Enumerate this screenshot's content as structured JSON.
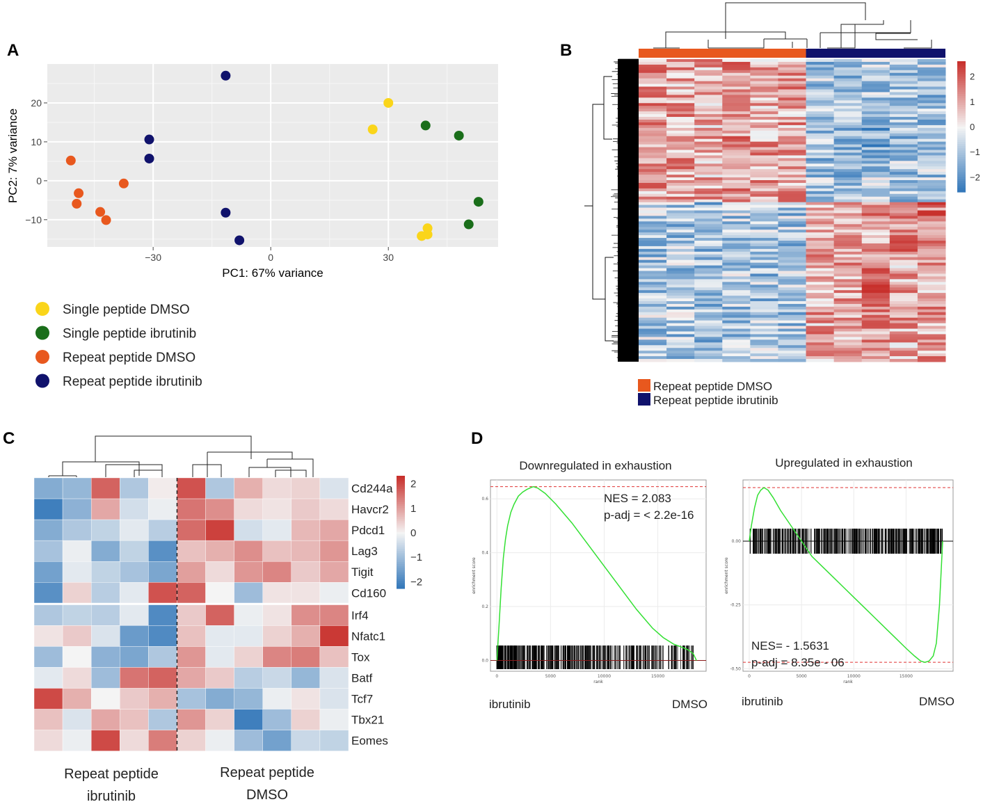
{
  "panel_labels": {
    "a": "A",
    "b": "B",
    "c": "C",
    "d": "D"
  },
  "colors": {
    "single_dmso": "#FAD51A",
    "single_ibrutinib": "#1A6E1A",
    "repeat_dmso": "#E8581E",
    "repeat_ibrutinib": "#10126C",
    "heat_low": "#2E74B8",
    "heat_mid": "#F4F4F4",
    "heat_high": "#C8302C",
    "gsea_line": "#33E033",
    "gsea_ref": "#E03030"
  },
  "chart_data": [
    {
      "id": "pca",
      "type": "scatter",
      "title": "",
      "xlabel": "PC1: 67% variance",
      "ylabel": "PC2: 7% variance",
      "xlim": [
        -57,
        58
      ],
      "ylim": [
        -17,
        30
      ],
      "xticks": [
        -30,
        0,
        30
      ],
      "yticks": [
        -10,
        0,
        10,
        20
      ],
      "grid": true,
      "legend_position": "bottom-left",
      "series": [
        {
          "name": "Single peptide DMSO",
          "color_key": "single_dmso",
          "points": [
            [
              26,
              13.2
            ],
            [
              30,
              20
            ],
            [
              38.5,
              -14.2
            ],
            [
              40,
              -12.2
            ],
            [
              40,
              -13.8
            ]
          ]
        },
        {
          "name": "Single peptide ibrutinib",
          "color_key": "single_ibrutinib",
          "points": [
            [
              39.5,
              14.2
            ],
            [
              48,
              11.6
            ],
            [
              53,
              -5.4
            ],
            [
              50.5,
              -11.2
            ]
          ]
        },
        {
          "name": "Repeat peptide DMSO",
          "color_key": "repeat_dmso",
          "points": [
            [
              -51,
              5.2
            ],
            [
              -49,
              -3.2
            ],
            [
              -49.5,
              -5.9
            ],
            [
              -43.5,
              -8
            ],
            [
              -42,
              -10.1
            ],
            [
              -37.5,
              -0.7
            ]
          ]
        },
        {
          "name": "Repeat peptide ibrutinib",
          "color_key": "repeat_ibrutinib",
          "points": [
            [
              -31,
              10.6
            ],
            [
              -31,
              5.7
            ],
            [
              -11.5,
              27
            ],
            [
              -11.5,
              -8.2
            ],
            [
              -8,
              -15.3
            ]
          ]
        }
      ]
    },
    {
      "id": "heatmap_b",
      "type": "heatmap",
      "title": "",
      "groups": [
        {
          "name": "Repeat peptide DMSO",
          "color_key": "repeat_dmso",
          "columns": 6
        },
        {
          "name": "Repeat peptide ibrutinib",
          "color_key": "repeat_ibrutinib",
          "columns": 5
        }
      ],
      "color_scale": {
        "min": -2.6,
        "max": 2.6,
        "ticks": [
          2,
          1,
          0,
          -1,
          -2
        ]
      }
    },
    {
      "id": "heatmap_c",
      "type": "heatmap",
      "rows": [
        "Cd244a",
        "Havcr2",
        "Pdcd1",
        "Lag3",
        "Tigit",
        "Cd160",
        "Irf4",
        "Nfatc1",
        "Tox",
        "Batf",
        "Tcf7",
        "Tbx21",
        "Eomes"
      ],
      "row_split_after": 6,
      "column_groups": [
        {
          "label_lines": [
            "Repeat peptide",
            "ibrutinib"
          ],
          "columns": 5
        },
        {
          "label_lines": [
            "Repeat peptide",
            "DMSO"
          ],
          "columns": 6
        }
      ],
      "values": [
        [
          -1.3,
          -1.1,
          1.7,
          -0.8,
          0.1,
          1.9,
          -0.8,
          0.8,
          0.3,
          0.4,
          -0.3
        ],
        [
          -2.1,
          -1.2,
          0.9,
          -0.4,
          -0.1,
          1.5,
          1.2,
          0.3,
          0.2,
          0.5,
          0.3
        ],
        [
          -1.3,
          -0.8,
          -0.6,
          -0.2,
          -0.7,
          1.6,
          2.1,
          -0.4,
          -0.2,
          0.7,
          0.9
        ],
        [
          -0.9,
          -0.1,
          -1.3,
          -0.6,
          -1.8,
          0.6,
          0.8,
          1.2,
          0.6,
          0.7,
          1.1
        ],
        [
          -1.5,
          -0.2,
          -0.6,
          -0.9,
          -1.4,
          1.0,
          0.3,
          1.1,
          1.3,
          0.5,
          0.9
        ],
        [
          -1.8,
          0.4,
          -0.7,
          -0.2,
          1.9,
          1.7,
          0.0,
          -1.0,
          0.2,
          0.2,
          -0.1
        ],
        [
          -0.8,
          -0.6,
          -0.7,
          -0.2,
          -1.9,
          0.5,
          1.7,
          -0.1,
          0.2,
          1.2,
          1.3
        ],
        [
          0.2,
          0.5,
          -0.3,
          -1.6,
          -1.9,
          0.6,
          -0.2,
          -0.2,
          0.4,
          0.8,
          2.2
        ],
        [
          -1.0,
          0.0,
          -1.2,
          -1.4,
          -0.8,
          1.1,
          -0.2,
          0.4,
          1.3,
          1.4,
          0.6
        ],
        [
          -0.2,
          0.3,
          -1.0,
          1.5,
          1.7,
          0.9,
          0.5,
          -0.7,
          -0.5,
          -1.1,
          -0.3
        ],
        [
          2.0,
          0.8,
          0.0,
          0.5,
          0.8,
          -0.9,
          -1.3,
          -1.1,
          -0.1,
          0.2,
          -0.3
        ],
        [
          0.6,
          -0.3,
          0.9,
          0.6,
          -0.8,
          1.1,
          0.4,
          -2.1,
          -1.0,
          0.4,
          -0.1
        ],
        [
          0.3,
          -0.1,
          2.0,
          0.3,
          1.4,
          0.4,
          -0.1,
          -1.0,
          -1.5,
          -0.5,
          -0.6
        ]
      ],
      "color_scale": {
        "min": -2.3,
        "max": 2.3,
        "ticks": [
          2,
          1,
          0,
          -1,
          -2
        ]
      }
    },
    {
      "id": "gsea_down",
      "type": "line",
      "title": "Downregulated in exhaustion",
      "xlabel": "rank",
      "ylabel": "enrichment score",
      "xlim": [
        -600,
        19500
      ],
      "ylim": [
        -0.04,
        0.67
      ],
      "xticks": [
        0,
        5000,
        10000,
        15000
      ],
      "yticks": [
        0.0,
        0.2,
        0.4,
        0.6
      ],
      "ytick_labels": [
        "0.0",
        "0.2",
        "0.4",
        "0.6"
      ],
      "peak_line": 0.645,
      "annotation": [
        "NES = 2.083",
        "p-adj = < 2.2e-16"
      ],
      "left_label": "ibrutinib",
      "right_label": "DMSO",
      "x": [
        0,
        200,
        400,
        600,
        800,
        1000,
        1300,
        1600,
        2000,
        2400,
        2800,
        3200,
        3400,
        3800,
        4500,
        5500,
        7000,
        8500,
        10000,
        11500,
        13000,
        14500,
        15500,
        16500,
        17200,
        17800,
        18300,
        18600
      ],
      "y": [
        0.0,
        0.13,
        0.27,
        0.38,
        0.45,
        0.5,
        0.55,
        0.58,
        0.61,
        0.625,
        0.635,
        0.642,
        0.645,
        0.64,
        0.62,
        0.58,
        0.51,
        0.43,
        0.35,
        0.27,
        0.19,
        0.12,
        0.085,
        0.06,
        0.05,
        0.04,
        0.025,
        0.0
      ]
    },
    {
      "id": "gsea_up",
      "type": "line",
      "title": "Upregulated  in exhaustion",
      "xlabel": "rank",
      "ylabel": "enrichment score",
      "xlim": [
        -600,
        19500
      ],
      "ylim": [
        -0.51,
        0.24
      ],
      "xticks": [
        0,
        5000,
        10000,
        15000
      ],
      "yticks": [
        0.0,
        -0.25,
        -0.5
      ],
      "ytick_labels": [
        "0.00",
        "-0.25",
        "-0.50"
      ],
      "peak_line": 0.21,
      "trough_line": -0.475,
      "annotation": [
        "NES= - 1.5631",
        "p-adj = 8.35e - 06"
      ],
      "left_label": "ibrutinib",
      "right_label": "DMSO",
      "x": [
        0,
        200,
        500,
        800,
        1100,
        1400,
        1800,
        2300,
        3000,
        4000,
        5000,
        6000,
        7000,
        8000,
        9000,
        10000,
        11000,
        12000,
        13000,
        14000,
        15000,
        15800,
        16400,
        16800,
        17200,
        17600,
        17900,
        18200,
        18500
      ],
      "y": [
        0.0,
        0.06,
        0.13,
        0.18,
        0.2,
        0.21,
        0.2,
        0.17,
        0.12,
        0.06,
        0.0,
        -0.06,
        -0.1,
        -0.14,
        -0.18,
        -0.22,
        -0.26,
        -0.3,
        -0.34,
        -0.38,
        -0.42,
        -0.45,
        -0.47,
        -0.475,
        -0.47,
        -0.45,
        -0.4,
        -0.25,
        0.0
      ]
    }
  ]
}
